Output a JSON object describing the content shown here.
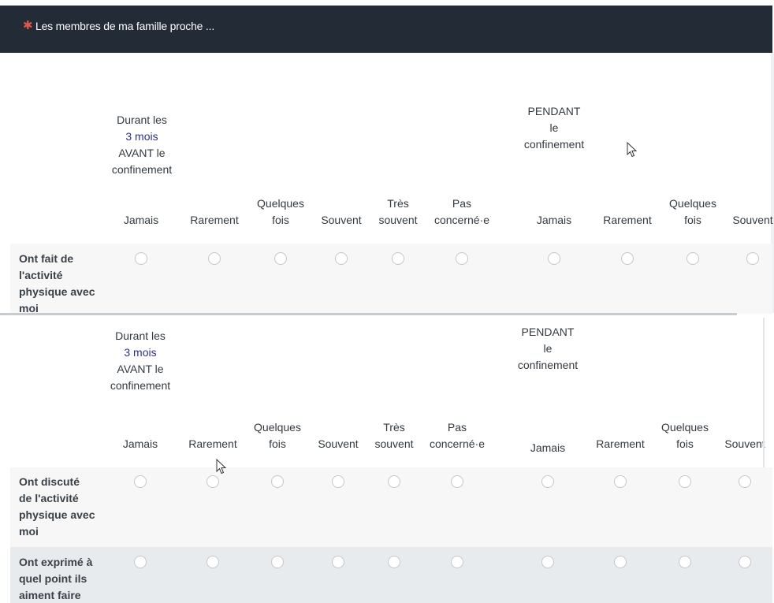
{
  "question": {
    "required_marker": "✱",
    "title": "Les membres de ma famille proche ..."
  },
  "groups": {
    "before": {
      "line1": "Durant les",
      "line2": "3 mois",
      "line3": "AVANT le",
      "line4": "confinement"
    },
    "during": {
      "line1": "PENDANT",
      "line2": "le",
      "line3": "confinement"
    }
  },
  "columns": [
    {
      "line1": "",
      "line2": "Jamais"
    },
    {
      "line1": "",
      "line2": "Rarement"
    },
    {
      "line1": "Quelques",
      "line2": "fois"
    },
    {
      "line1": "",
      "line2": "Souvent"
    },
    {
      "line1": "Très",
      "line2": "souvent"
    },
    {
      "line1": "Pas",
      "line2": "concerné·e"
    },
    {
      "line1": "",
      "line2": "Jamais"
    },
    {
      "line1": "",
      "line2": "Rarement"
    },
    {
      "line1": "Quelques",
      "line2": "fois"
    },
    {
      "line1": "",
      "line2": "Souvent"
    }
  ],
  "rows": [
    {
      "label_lines": [
        "Ont fait de",
        "l'activité",
        "physique avec",
        "moi"
      ]
    },
    {
      "label_lines": [
        "Ont discuté",
        "de l'activité",
        "physique avec",
        "moi"
      ]
    },
    {
      "label_lines": [
        "Ont exprimé à",
        "quel point ils",
        "aiment faire"
      ]
    }
  ],
  "colors": {
    "header_bg": "#222b36",
    "required": "#e2574c",
    "highlight": "#2c3086",
    "row_odd": "#f7f7f8",
    "row_even": "#e8ebee"
  }
}
